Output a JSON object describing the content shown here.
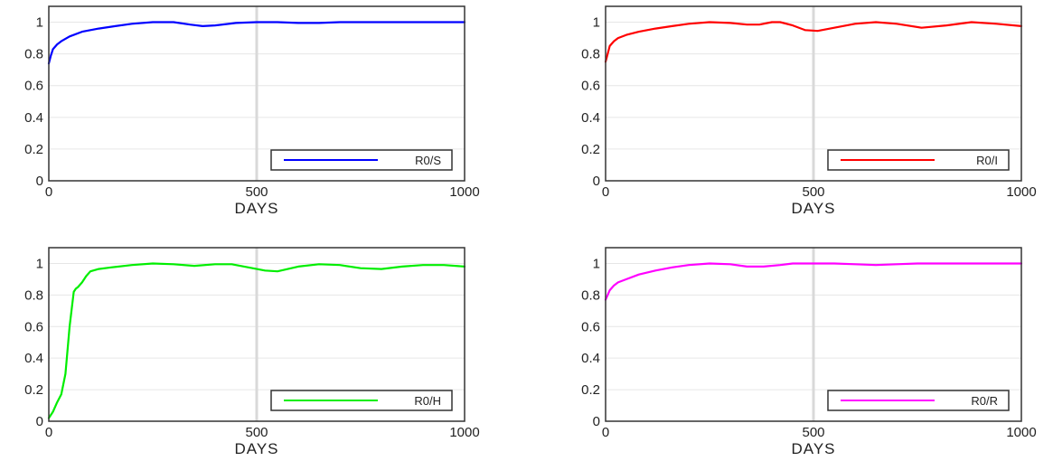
{
  "chart_data": [
    {
      "type": "line",
      "xlabel": "DAYS",
      "ylabel": "",
      "xlim": [
        0,
        1000
      ],
      "ylim": [
        0,
        1.1
      ],
      "xticks": [
        "0",
        "500",
        "1000"
      ],
      "yticks": [
        "0",
        "0.2",
        "0.4",
        "0.6",
        "0.8",
        "1"
      ],
      "grid": true,
      "legend": "bottom-right",
      "series": [
        {
          "name": "R0/S",
          "color": "#0000ff",
          "x": [
            0,
            5,
            10,
            20,
            30,
            50,
            80,
            120,
            160,
            200,
            250,
            300,
            340,
            370,
            400,
            450,
            500,
            550,
            600,
            650,
            700,
            800,
            900,
            1000
          ],
          "y": [
            0.74,
            0.79,
            0.83,
            0.86,
            0.88,
            0.91,
            0.94,
            0.96,
            0.975,
            0.99,
            1.0,
            1.0,
            0.985,
            0.975,
            0.98,
            0.995,
            1.0,
            1.0,
            0.995,
            0.995,
            1.0,
            1.0,
            1.0,
            1.0
          ]
        }
      ]
    },
    {
      "type": "line",
      "xlabel": "DAYS",
      "ylabel": "",
      "xlim": [
        0,
        1000
      ],
      "ylim": [
        0,
        1.1
      ],
      "xticks": [
        "0",
        "500",
        "1000"
      ],
      "yticks": [
        "0",
        "0.2",
        "0.4",
        "0.6",
        "0.8",
        "1"
      ],
      "grid": true,
      "legend": "bottom-right",
      "series": [
        {
          "name": "R0/I",
          "color": "#ff0000",
          "x": [
            0,
            5,
            10,
            20,
            30,
            50,
            80,
            120,
            160,
            200,
            250,
            300,
            340,
            370,
            400,
            420,
            450,
            480,
            510,
            540,
            600,
            650,
            700,
            760,
            820,
            880,
            940,
            1000
          ],
          "y": [
            0.75,
            0.8,
            0.85,
            0.88,
            0.9,
            0.92,
            0.94,
            0.96,
            0.975,
            0.99,
            1.0,
            0.995,
            0.985,
            0.985,
            1.0,
            1.0,
            0.98,
            0.95,
            0.945,
            0.96,
            0.99,
            1.0,
            0.99,
            0.965,
            0.98,
            1.0,
            0.99,
            0.975
          ]
        }
      ]
    },
    {
      "type": "line",
      "xlabel": "DAYS",
      "ylabel": "",
      "xlim": [
        0,
        1000
      ],
      "ylim": [
        0,
        1.1
      ],
      "xticks": [
        "0",
        "500",
        "1000"
      ],
      "yticks": [
        "0",
        "0.2",
        "0.4",
        "0.6",
        "0.8",
        "1"
      ],
      "grid": true,
      "legend": "bottom-right",
      "series": [
        {
          "name": "R0/H",
          "color": "#00ee00",
          "x": [
            0,
            10,
            20,
            30,
            40,
            50,
            60,
            65,
            70,
            80,
            90,
            100,
            120,
            150,
            200,
            250,
            300,
            350,
            400,
            440,
            480,
            520,
            550,
            600,
            650,
            700,
            750,
            800,
            850,
            900,
            950,
            1000
          ],
          "y": [
            0.02,
            0.06,
            0.12,
            0.17,
            0.3,
            0.6,
            0.82,
            0.84,
            0.85,
            0.88,
            0.92,
            0.95,
            0.965,
            0.975,
            0.99,
            1.0,
            0.995,
            0.985,
            0.995,
            0.995,
            0.975,
            0.955,
            0.95,
            0.98,
            0.995,
            0.99,
            0.97,
            0.965,
            0.98,
            0.99,
            0.99,
            0.98
          ]
        }
      ]
    },
    {
      "type": "line",
      "xlabel": "DAYS",
      "ylabel": "",
      "xlim": [
        0,
        1000
      ],
      "ylim": [
        0,
        1.1
      ],
      "xticks": [
        "0",
        "500",
        "1000"
      ],
      "yticks": [
        "0",
        "0.2",
        "0.4",
        "0.6",
        "0.8",
        "1"
      ],
      "grid": true,
      "legend": "bottom-right",
      "series": [
        {
          "name": "R0/R",
          "color": "#ff00ff",
          "x": [
            0,
            5,
            10,
            20,
            30,
            50,
            80,
            120,
            160,
            200,
            250,
            300,
            340,
            380,
            420,
            450,
            500,
            550,
            600,
            650,
            700,
            750,
            800,
            900,
            1000
          ],
          "y": [
            0.77,
            0.8,
            0.83,
            0.86,
            0.88,
            0.9,
            0.93,
            0.955,
            0.975,
            0.99,
            1.0,
            0.995,
            0.98,
            0.98,
            0.99,
            1.0,
            1.0,
            1.0,
            0.995,
            0.99,
            0.995,
            1.0,
            1.0,
            1.0,
            1.0
          ]
        }
      ]
    }
  ]
}
